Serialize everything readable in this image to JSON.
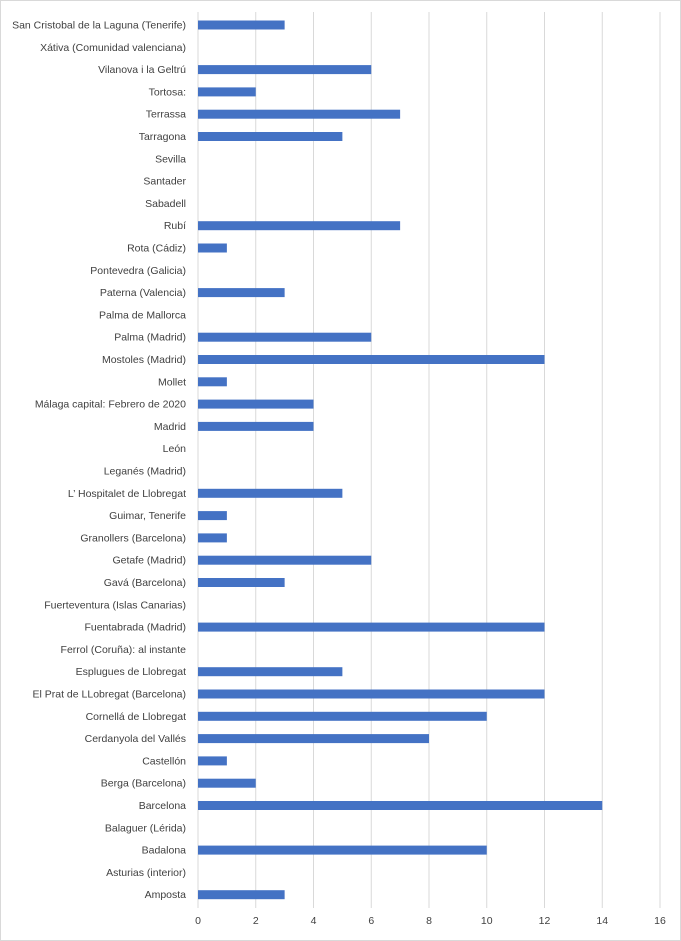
{
  "chart_data": {
    "type": "bar",
    "orientation": "horizontal",
    "categories": [
      "San Cristobal de la Laguna (Tenerife)",
      "Xátiva (Comunidad valenciana)",
      "Vilanova i la Geltrú",
      "Tortosa:",
      "Terrassa",
      "Tarragona",
      "Sevilla",
      "Santader",
      "Sabadell",
      "Rubí",
      "Rota (Cádiz)",
      "Pontevedra (Galicia)",
      "Paterna (Valencia)",
      "Palma de Mallorca",
      "Palma (Madrid)",
      "Mostoles (Madrid)",
      "Mollet",
      "Málaga capital: Febrero de 2020",
      "Madrid",
      "León",
      "Leganés (Madrid)",
      "L’ Hospitalet de Llobregat",
      "Guimar, Tenerife",
      "Granollers (Barcelona)",
      "Getafe (Madrid)",
      "Gavá (Barcelona)",
      "Fuerteventura (Islas Canarias)",
      "Fuentabrada (Madrid)",
      "Ferrol (Coruña): al instante",
      "Esplugues de Llobregat",
      "El Prat de LLobregat (Barcelona)",
      "Cornellá de Llobregat",
      "Cerdanyola del Vallés",
      "Castellón",
      "Berga (Barcelona)",
      "Barcelona",
      "Balaguer (Lérida)",
      "Badalona",
      "Asturias (interior)",
      "Amposta"
    ],
    "values": [
      3,
      0,
      6,
      2,
      7,
      5,
      0,
      0,
      0,
      7,
      1,
      0,
      3,
      0,
      6,
      12,
      1,
      4,
      4,
      0,
      0,
      5,
      1,
      1,
      6,
      3,
      0,
      12,
      0,
      5,
      12,
      10,
      8,
      1,
      2,
      14,
      0,
      10,
      0,
      3
    ],
    "x_ticks": [
      "0",
      "2",
      "4",
      "6",
      "8",
      "10",
      "12",
      "14",
      "16"
    ],
    "xlim": [
      0,
      16
    ],
    "grid": true,
    "bar_color": "#4472c4",
    "grid_color": "#d9d9d9",
    "title": "",
    "xlabel": "",
    "ylabel": ""
  }
}
